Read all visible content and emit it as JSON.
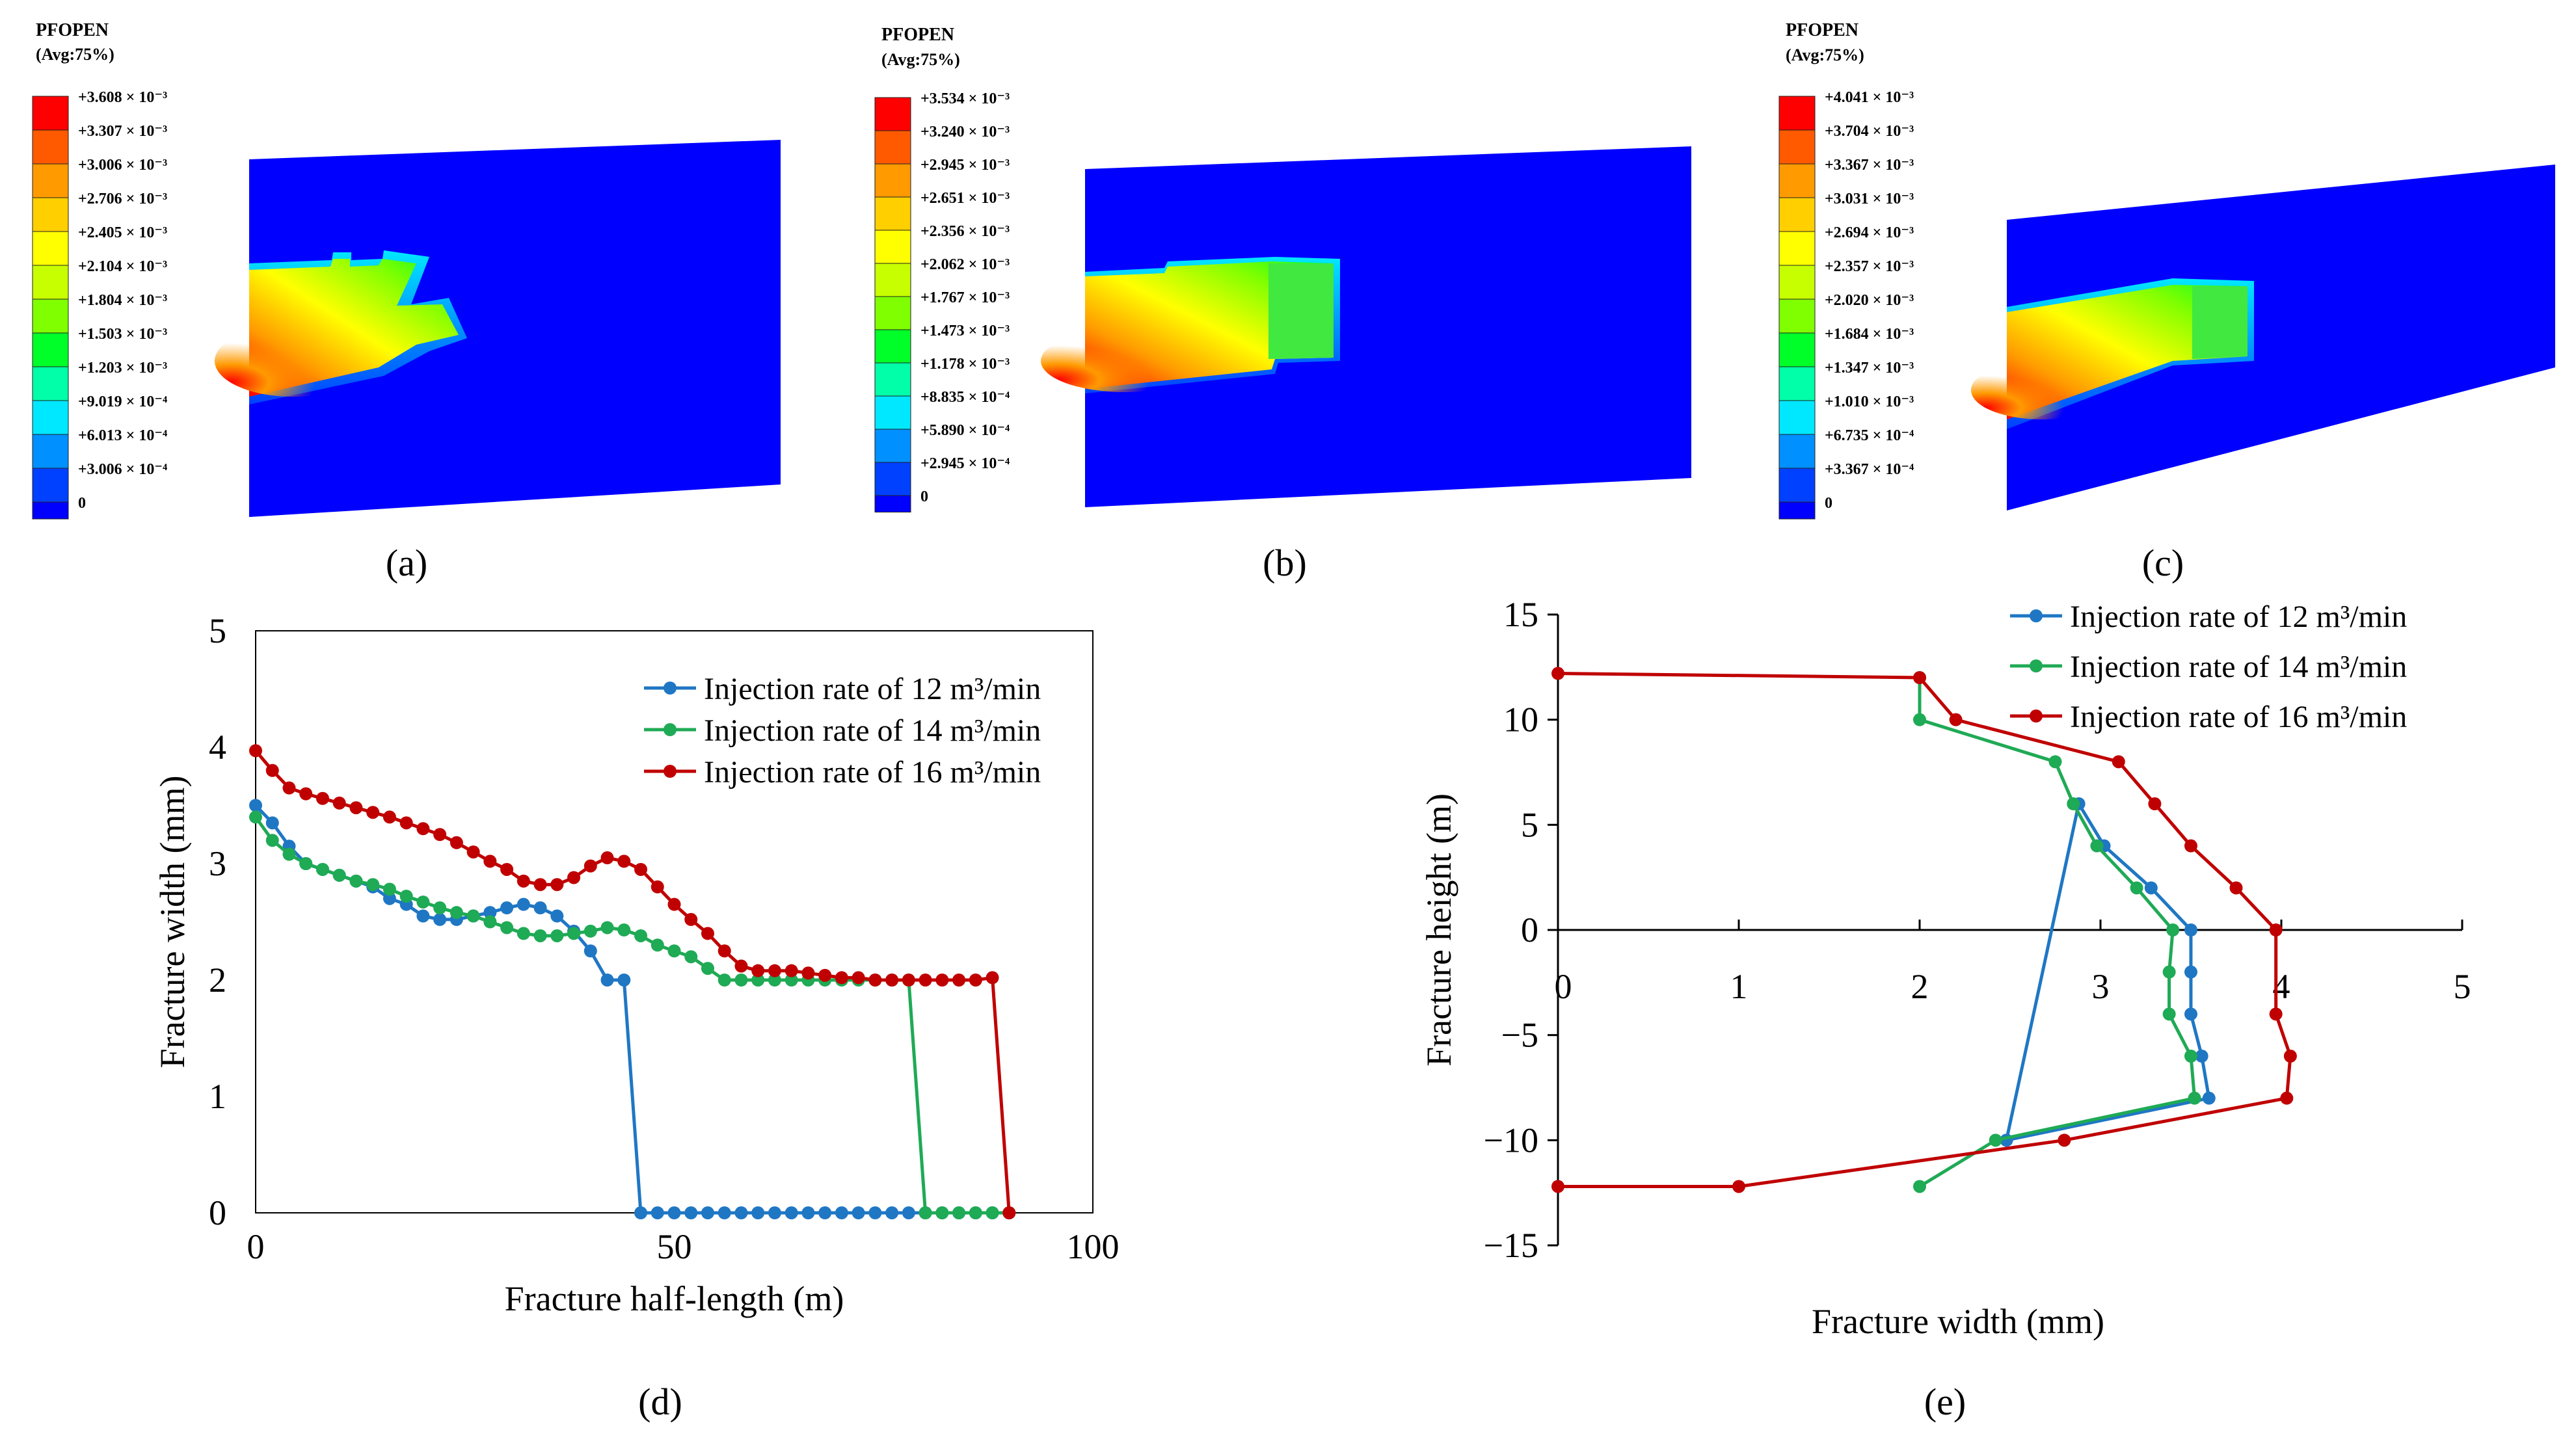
{
  "panels": {
    "a": {
      "label": "(a)"
    },
    "b": {
      "label": "(b)"
    },
    "c": {
      "label": "(c)"
    },
    "d": {
      "label": "(d)"
    },
    "e": {
      "label": "(e)"
    }
  },
  "contour_panels": [
    {
      "id": "a",
      "legend_title": "PFOPEN",
      "legend_subtitle": "(Avg:75%)",
      "scale_labels": [
        "+3.608 × 10⁻³",
        "+3.307 × 10⁻³",
        "+3.006 × 10⁻³",
        "+2.706 × 10⁻³",
        "+2.405 × 10⁻³",
        "+2.104 × 10⁻³",
        "+1.804 × 10⁻³",
        "+1.503 × 10⁻³",
        "+1.203 × 10⁻³",
        "+9.019 × 10⁻⁴",
        "+6.013 × 10⁻⁴",
        "+3.006 × 10⁻⁴",
        "0"
      ]
    },
    {
      "id": "b",
      "legend_title": "PFOPEN",
      "legend_subtitle": "(Avg:75%)",
      "scale_labels": [
        "+3.534 × 10⁻³",
        "+3.240 × 10⁻³",
        "+2.945 × 10⁻³",
        "+2.651 × 10⁻³",
        "+2.356 × 10⁻³",
        "+2.062 × 10⁻³",
        "+1.767 × 10⁻³",
        "+1.473 × 10⁻³",
        "+1.178 × 10⁻³",
        "+8.835 × 10⁻⁴",
        "+5.890 × 10⁻⁴",
        "+2.945 × 10⁻⁴",
        "0"
      ]
    },
    {
      "id": "c",
      "legend_title": "PFOPEN",
      "legend_subtitle": "(Avg:75%)",
      "scale_labels": [
        "+4.041 × 10⁻³",
        "+3.704 × 10⁻³",
        "+3.367 × 10⁻³",
        "+3.031 × 10⁻³",
        "+2.694 × 10⁻³",
        "+2.357 × 10⁻³",
        "+2.020 × 10⁻³",
        "+1.684 × 10⁻³",
        "+1.347 × 10⁻³",
        "+1.010 × 10⁻³",
        "+6.735 × 10⁻⁴",
        "+3.367 × 10⁻⁴",
        "0"
      ]
    }
  ],
  "colors": {
    "scale": [
      "#ff0000",
      "#ff5a00",
      "#ff9a00",
      "#ffcf00",
      "#ffff00",
      "#c8ff00",
      "#80ff00",
      "#00ff28",
      "#00ffa8",
      "#00e8ff",
      "#0090ff",
      "#0040ff",
      "#0000ff"
    ],
    "series": [
      "#1f77c4",
      "#1faa55",
      "#c00000"
    ]
  },
  "chart_data": [
    {
      "id": "d",
      "type": "line",
      "title": "",
      "xlabel": "Fracture half-length (m)",
      "ylabel": "Fracture width (mm)",
      "xlim": [
        0,
        100
      ],
      "ylim": [
        0,
        5
      ],
      "xticks": [
        0,
        50,
        100
      ],
      "yticks": [
        0,
        1,
        2,
        3,
        4,
        5
      ],
      "legend_position": "top-right",
      "series": [
        {
          "name": "Injection rate of 12 m³/min",
          "x": [
            0,
            2,
            4,
            6,
            8,
            10,
            12,
            14,
            16,
            18,
            20,
            22,
            24,
            26,
            28,
            30,
            32,
            34,
            36,
            38,
            40,
            42,
            44,
            46,
            48,
            50,
            52,
            54,
            56,
            58,
            60,
            62,
            64,
            66,
            68,
            70,
            72,
            74,
            76,
            78,
            80,
            82,
            84,
            86,
            88,
            90
          ],
          "y": [
            3.5,
            3.35,
            3.15,
            3.0,
            2.95,
            2.9,
            2.85,
            2.8,
            2.7,
            2.65,
            2.55,
            2.52,
            2.52,
            2.55,
            2.58,
            2.62,
            2.65,
            2.62,
            2.55,
            2.42,
            2.25,
            2.0,
            2.0,
            0,
            0,
            0,
            0,
            0,
            0,
            0,
            0,
            0,
            0,
            0,
            0,
            0,
            0,
            0,
            0,
            0,
            0,
            0,
            0,
            0,
            0,
            0
          ]
        },
        {
          "name": "Injection rate of 14 m³/min",
          "x": [
            0,
            2,
            4,
            6,
            8,
            10,
            12,
            14,
            16,
            18,
            20,
            22,
            24,
            26,
            28,
            30,
            32,
            34,
            36,
            38,
            40,
            42,
            44,
            46,
            48,
            50,
            52,
            54,
            56,
            58,
            60,
            62,
            64,
            66,
            68,
            70,
            72,
            74,
            76,
            78,
            80,
            82,
            84,
            86,
            88,
            90
          ],
          "y": [
            3.4,
            3.2,
            3.08,
            3.0,
            2.95,
            2.9,
            2.85,
            2.82,
            2.78,
            2.72,
            2.67,
            2.62,
            2.58,
            2.55,
            2.5,
            2.45,
            2.4,
            2.38,
            2.38,
            2.4,
            2.42,
            2.45,
            2.43,
            2.38,
            2.3,
            2.25,
            2.2,
            2.1,
            2.0,
            2.0,
            2.0,
            2.0,
            2.0,
            2.0,
            2.0,
            2.0,
            2.0,
            2.0,
            2.0,
            2.0,
            0,
            0,
            0,
            0,
            0,
            0
          ]
        },
        {
          "name": "Injection rate of 16 m³/min",
          "x": [
            0,
            2,
            4,
            6,
            8,
            10,
            12,
            14,
            16,
            18,
            20,
            22,
            24,
            26,
            28,
            30,
            32,
            34,
            36,
            38,
            40,
            42,
            44,
            46,
            48,
            50,
            52,
            54,
            56,
            58,
            60,
            62,
            64,
            66,
            68,
            70,
            72,
            74,
            76,
            78,
            80,
            82,
            84,
            86,
            88,
            90
          ],
          "y": [
            3.97,
            3.8,
            3.65,
            3.6,
            3.56,
            3.52,
            3.48,
            3.44,
            3.4,
            3.35,
            3.3,
            3.25,
            3.18,
            3.1,
            3.02,
            2.95,
            2.85,
            2.82,
            2.82,
            2.88,
            2.98,
            3.05,
            3.02,
            2.95,
            2.8,
            2.65,
            2.52,
            2.4,
            2.25,
            2.12,
            2.08,
            2.08,
            2.08,
            2.06,
            2.04,
            2.02,
            2.02,
            2.0,
            2.0,
            2.0,
            2.0,
            2.0,
            2.0,
            2.0,
            2.02,
            0
          ]
        }
      ]
    },
    {
      "id": "e",
      "type": "line",
      "title": "",
      "xlabel": "Fracture width (mm)",
      "ylabel": "Fracture height (m)",
      "xlim": [
        0,
        5
      ],
      "ylim": [
        -15,
        15
      ],
      "xticks": [
        0,
        1,
        2,
        3,
        4,
        5
      ],
      "yticks": [
        15,
        10,
        5,
        0,
        -5,
        -10,
        -15
      ],
      "legend_position": "top-right",
      "series": [
        {
          "name": "Injection rate of 12 m³/min",
          "x": [
            2.48,
            2.88,
            3.02,
            3.28,
            3.5,
            3.5,
            3.5,
            3.56,
            3.6,
            2.48
          ],
          "y": [
            -10,
            6,
            4,
            2,
            0,
            -2,
            -4,
            -6,
            -8,
            -10
          ]
        },
        {
          "name": "Injection rate of 14 m³/min",
          "x": [
            2.0,
            2.0,
            2.75,
            2.85,
            2.98,
            3.2,
            3.4,
            3.38,
            3.38,
            3.5,
            3.52,
            2.42,
            2.0
          ],
          "y": [
            12,
            10,
            8,
            6,
            4,
            2,
            0,
            -2,
            -4,
            -6,
            -8,
            -10,
            -12.2
          ]
        },
        {
          "name": "Injection rate of 16 m³/min",
          "x": [
            0,
            2.0,
            2.2,
            3.1,
            3.3,
            3.5,
            3.75,
            3.97,
            3.97,
            4.05,
            4.03,
            2.8,
            1.0,
            0
          ],
          "y": [
            12.2,
            12,
            10,
            8,
            6,
            4,
            2,
            0,
            -4,
            -6,
            -8,
            -10,
            -12.2,
            -12.2
          ]
        }
      ]
    }
  ]
}
